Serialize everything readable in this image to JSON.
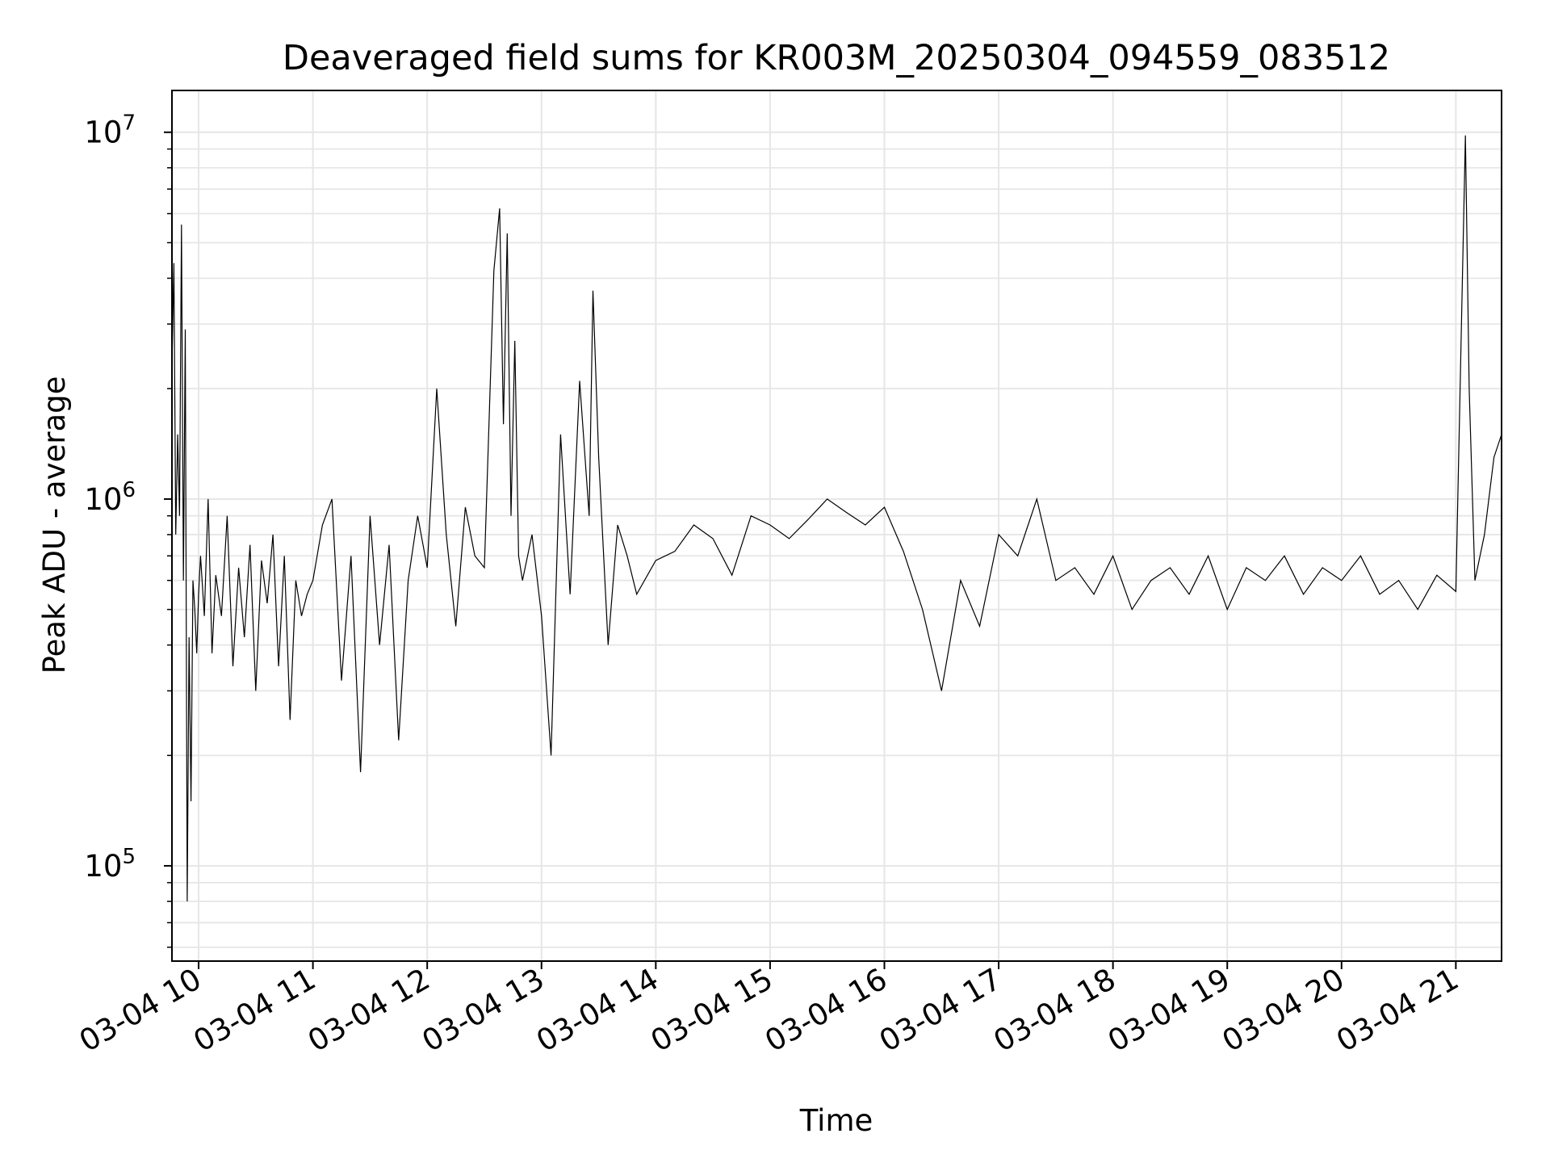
{
  "chart_data": {
    "type": "line",
    "title": "Deaveraged field sums for KR003M_20250304_094559_083512",
    "xlabel": "Time",
    "ylabel": "Peak ADU - average",
    "yscale": "log",
    "ylim": [
      55000,
      13000000
    ],
    "xlim": [
      "03-04 09:46",
      "03-04 21:24"
    ],
    "grid": true,
    "line_color": "#000000",
    "x_ticks": [
      {
        "value": "03-04 10:00",
        "label": "03-04 10"
      },
      {
        "value": "03-04 11:00",
        "label": "03-04 11"
      },
      {
        "value": "03-04 12:00",
        "label": "03-04 12"
      },
      {
        "value": "03-04 13:00",
        "label": "03-04 13"
      },
      {
        "value": "03-04 14:00",
        "label": "03-04 14"
      },
      {
        "value": "03-04 15:00",
        "label": "03-04 15"
      },
      {
        "value": "03-04 16:00",
        "label": "03-04 16"
      },
      {
        "value": "03-04 17:00",
        "label": "03-04 17"
      },
      {
        "value": "03-04 18:00",
        "label": "03-04 18"
      },
      {
        "value": "03-04 19:00",
        "label": "03-04 19"
      },
      {
        "value": "03-04 20:00",
        "label": "03-04 20"
      },
      {
        "value": "03-04 21:00",
        "label": "03-04 21"
      }
    ],
    "y_ticks": [
      {
        "value": 100000,
        "base": "10",
        "exp": "5"
      },
      {
        "value": 1000000,
        "base": "10",
        "exp": "6"
      },
      {
        "value": 10000000,
        "base": "10",
        "exp": "7"
      }
    ],
    "series": [
      {
        "x": [
          "03-04 09:46",
          "03-04 09:47",
          "03-04 09:48",
          "03-04 09:49",
          "03-04 09:50",
          "03-04 09:51",
          "03-04 09:52",
          "03-04 09:53",
          "03-04 09:54",
          "03-04 09:55",
          "03-04 09:56",
          "03-04 09:57",
          "03-04 09:58",
          "03-04 09:59",
          "03-04 10:00",
          "03-04 10:01",
          "03-04 10:03",
          "03-04 10:05",
          "03-04 10:07",
          "03-04 10:09",
          "03-04 10:12",
          "03-04 10:15",
          "03-04 10:18",
          "03-04 10:21",
          "03-04 10:24",
          "03-04 10:27",
          "03-04 10:30",
          "03-04 10:33",
          "03-04 10:36",
          "03-04 10:39",
          "03-04 10:42",
          "03-04 10:45",
          "03-04 10:48",
          "03-04 10:51",
          "03-04 10:54",
          "03-04 10:57",
          "03-04 11:00",
          "03-04 11:05",
          "03-04 11:10",
          "03-04 11:15",
          "03-04 11:20",
          "03-04 11:25",
          "03-04 11:30",
          "03-04 11:35",
          "03-04 11:40",
          "03-04 11:45",
          "03-04 11:50",
          "03-04 11:55",
          "03-04 12:00",
          "03-04 12:05",
          "03-04 12:10",
          "03-04 12:15",
          "03-04 12:20",
          "03-04 12:25",
          "03-04 12:30",
          "03-04 12:35",
          "03-04 12:38",
          "03-04 12:40",
          "03-04 12:42",
          "03-04 12:44",
          "03-04 12:46",
          "03-04 12:48",
          "03-04 12:50",
          "03-04 12:55",
          "03-04 13:00",
          "03-04 13:05",
          "03-04 13:10",
          "03-04 13:15",
          "03-04 13:20",
          "03-04 13:25",
          "03-04 13:27",
          "03-04 13:30",
          "03-04 13:35",
          "03-04 13:40",
          "03-04 13:45",
          "03-04 13:50",
          "03-04 14:00",
          "03-04 14:10",
          "03-04 14:20",
          "03-04 14:30",
          "03-04 14:40",
          "03-04 14:50",
          "03-04 15:00",
          "03-04 15:10",
          "03-04 15:20",
          "03-04 15:30",
          "03-04 15:40",
          "03-04 15:50",
          "03-04 16:00",
          "03-04 16:10",
          "03-04 16:20",
          "03-04 16:30",
          "03-04 16:40",
          "03-04 16:50",
          "03-04 17:00",
          "03-04 17:10",
          "03-04 17:20",
          "03-04 17:30",
          "03-04 17:40",
          "03-04 17:50",
          "03-04 18:00",
          "03-04 18:10",
          "03-04 18:20",
          "03-04 18:30",
          "03-04 18:40",
          "03-04 18:50",
          "03-04 19:00",
          "03-04 19:10",
          "03-04 19:20",
          "03-04 19:30",
          "03-04 19:40",
          "03-04 19:50",
          "03-04 20:00",
          "03-04 20:10",
          "03-04 20:20",
          "03-04 20:30",
          "03-04 20:40",
          "03-04 20:50",
          "03-04 21:00",
          "03-04 21:05",
          "03-04 21:07",
          "03-04 21:10",
          "03-04 21:15",
          "03-04 21:20",
          "03-04 21:24"
        ],
        "y": [
          2300000,
          4400000,
          800000,
          1500000,
          900000,
          5600000,
          600000,
          2900000,
          80000,
          420000,
          150000,
          600000,
          500000,
          380000,
          550000,
          700000,
          480000,
          1000000,
          380000,
          620000,
          480000,
          900000,
          350000,
          650000,
          420000,
          750000,
          300000,
          680000,
          520000,
          800000,
          350000,
          700000,
          250000,
          600000,
          480000,
          550000,
          600000,
          850000,
          1000000,
          320000,
          700000,
          180000,
          900000,
          400000,
          750000,
          220000,
          600000,
          900000,
          650000,
          2000000,
          800000,
          450000,
          950000,
          700000,
          650000,
          4200000,
          6200000,
          1600000,
          5300000,
          900000,
          2700000,
          700000,
          600000,
          800000,
          480000,
          200000,
          1500000,
          550000,
          2100000,
          900000,
          3700000,
          1300000,
          400000,
          850000,
          700000,
          550000,
          680000,
          720000,
          850000,
          780000,
          620000,
          900000,
          850000,
          780000,
          880000,
          1000000,
          920000,
          850000,
          950000,
          720000,
          500000,
          300000,
          600000,
          450000,
          800000,
          700000,
          1000000,
          600000,
          650000,
          550000,
          700000,
          500000,
          600000,
          650000,
          550000,
          700000,
          500000,
          650000,
          600000,
          700000,
          550000,
          650000,
          600000,
          700000,
          550000,
          600000,
          500000,
          620000,
          560000,
          9800000,
          2000000,
          600000,
          800000,
          1300000,
          1500000
        ]
      }
    ]
  }
}
